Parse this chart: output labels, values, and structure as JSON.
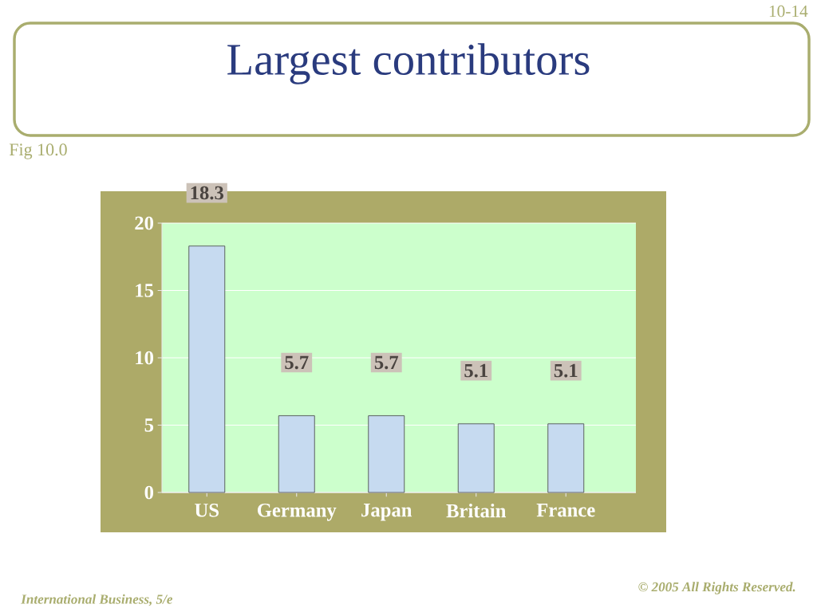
{
  "chart_data": {
    "type": "bar",
    "title": "Largest contributors",
    "categories": [
      "US",
      "Germany",
      "Japan",
      "Britain",
      "France"
    ],
    "values": [
      18.3,
      5.7,
      5.7,
      5.1,
      5.1
    ],
    "color": "#c6daf0",
    "ylim": [
      0,
      20
    ],
    "yticks": [
      0,
      5,
      10,
      15,
      20
    ],
    "grid": "y",
    "data_labels": true,
    "annotations": [
      "10-14",
      "Fig 10.0",
      "International Business, 5/e",
      "© 2005 All Rights Reserved."
    ]
  }
}
